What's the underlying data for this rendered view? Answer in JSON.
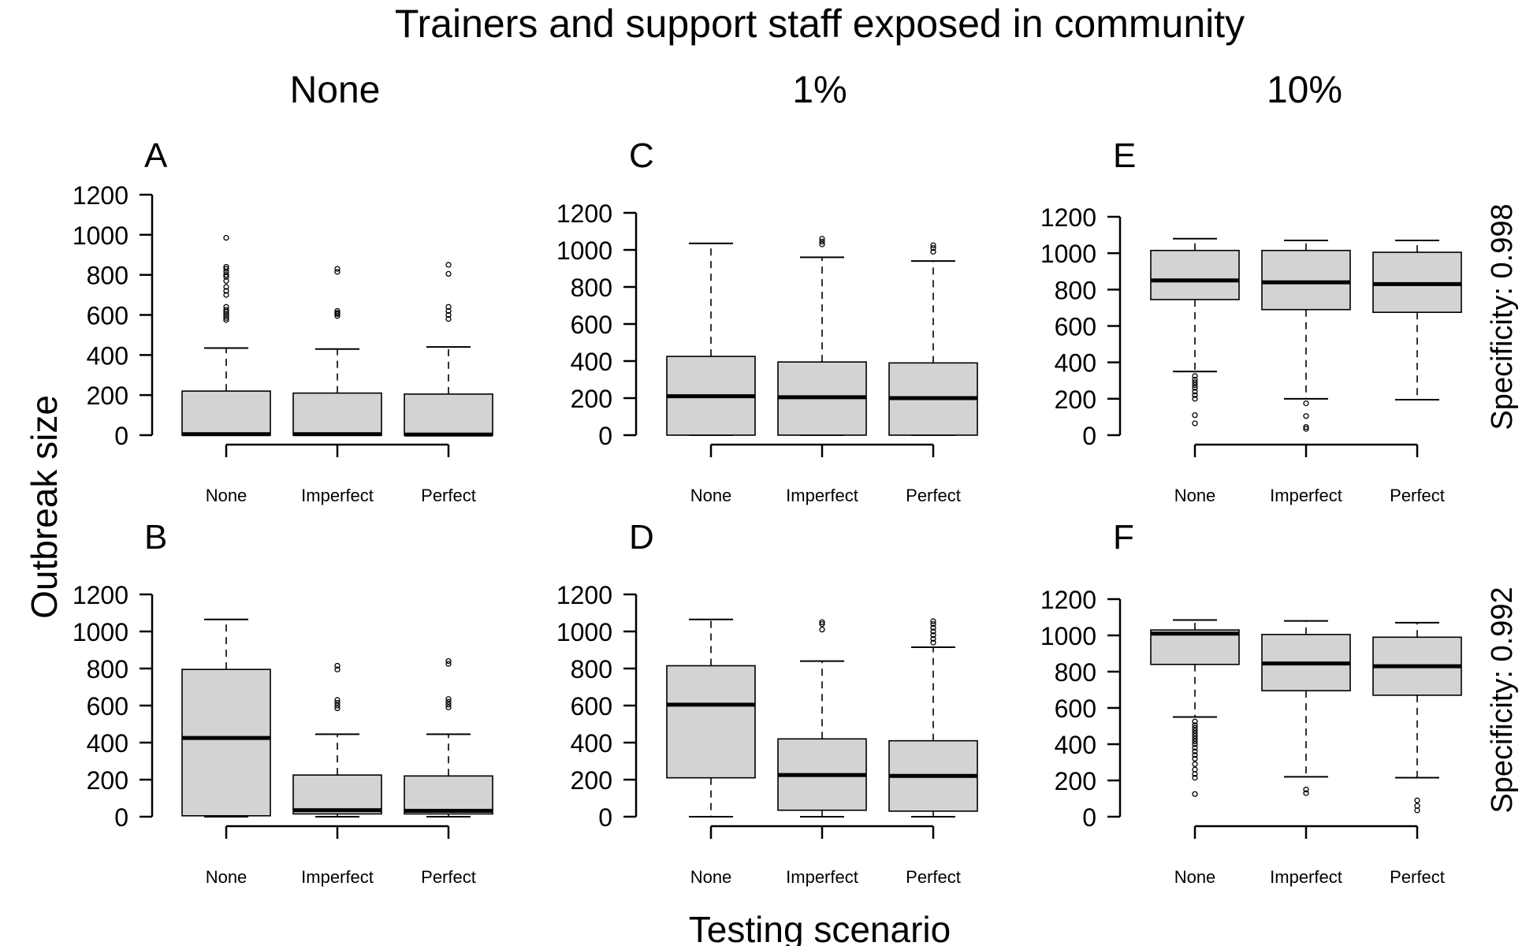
{
  "figure": {
    "title": "Trainers and support staff exposed in community",
    "xlabel": "Testing scenario",
    "ylabel": "Outbreak size",
    "column_headers": [
      "None",
      "1%",
      "10%"
    ],
    "row_labels": [
      "Specificity: 0.998",
      "Specificity: 0.992"
    ]
  },
  "chart_data": [
    {
      "type": "boxplot",
      "panel": "A",
      "column": "None",
      "row": "Specificity: 0.998",
      "categories": [
        "None",
        "Imperfect",
        "Perfect"
      ],
      "ylim": [
        0,
        1200
      ],
      "yticks": [
        0,
        200,
        400,
        600,
        800,
        1000,
        1200
      ],
      "boxes": [
        {
          "category": "None",
          "min": 0,
          "q1": 0,
          "median": 5,
          "q3": 220,
          "max": 435,
          "outliers": [
            575,
            585,
            595,
            605,
            615,
            625,
            640,
            700,
            720,
            740,
            770,
            790,
            800,
            815,
            830,
            840,
            985
          ]
        },
        {
          "category": "Imperfect",
          "min": 0,
          "q1": 0,
          "median": 5,
          "q3": 210,
          "max": 430,
          "outliers": [
            595,
            605,
            610,
            620,
            815,
            830
          ]
        },
        {
          "category": "Perfect",
          "min": 0,
          "q1": 0,
          "median": 3,
          "q3": 205,
          "max": 440,
          "outliers": [
            580,
            600,
            620,
            640,
            805,
            850
          ]
        }
      ]
    },
    {
      "type": "boxplot",
      "panel": "B",
      "column": "None",
      "row": "Specificity: 0.992",
      "categories": [
        "None",
        "Imperfect",
        "Perfect"
      ],
      "ylim": [
        0,
        1200
      ],
      "yticks": [
        0,
        200,
        400,
        600,
        800,
        1000,
        1200
      ],
      "boxes": [
        {
          "category": "None",
          "min": 0,
          "q1": 5,
          "median": 425,
          "q3": 795,
          "max": 1065,
          "outliers": []
        },
        {
          "category": "Imperfect",
          "min": 0,
          "q1": 15,
          "median": 35,
          "q3": 225,
          "max": 445,
          "outliers": [
            585,
            600,
            615,
            630,
            795,
            815
          ]
        },
        {
          "category": "Perfect",
          "min": 0,
          "q1": 15,
          "median": 32,
          "q3": 220,
          "max": 445,
          "outliers": [
            590,
            605,
            620,
            635,
            825,
            840
          ]
        }
      ]
    },
    {
      "type": "boxplot",
      "panel": "C",
      "column": "1%",
      "row": "Specificity: 0.998",
      "categories": [
        "None",
        "Imperfect",
        "Perfect"
      ],
      "ylim": [
        0,
        1200
      ],
      "yticks": [
        0,
        200,
        400,
        600,
        800,
        1000,
        1200
      ],
      "boxes": [
        {
          "category": "None",
          "min": 0,
          "q1": 0,
          "median": 210,
          "q3": 425,
          "max": 1035,
          "outliers": []
        },
        {
          "category": "Imperfect",
          "min": 0,
          "q1": 0,
          "median": 205,
          "q3": 395,
          "max": 960,
          "outliers": [
            1030,
            1045,
            1060
          ]
        },
        {
          "category": "Perfect",
          "min": 0,
          "q1": 0,
          "median": 200,
          "q3": 390,
          "max": 940,
          "outliers": [
            990,
            1010,
            1025
          ]
        }
      ]
    },
    {
      "type": "boxplot",
      "panel": "D",
      "column": "1%",
      "row": "Specificity: 0.992",
      "categories": [
        "None",
        "Imperfect",
        "Perfect"
      ],
      "ylim": [
        0,
        1200
      ],
      "yticks": [
        0,
        200,
        400,
        600,
        800,
        1000,
        1200
      ],
      "boxes": [
        {
          "category": "None",
          "min": 0,
          "q1": 210,
          "median": 605,
          "q3": 815,
          "max": 1065,
          "outliers": []
        },
        {
          "category": "Imperfect",
          "min": 0,
          "q1": 35,
          "median": 225,
          "q3": 420,
          "max": 840,
          "outliers": [
            1010,
            1040,
            1050
          ]
        },
        {
          "category": "Perfect",
          "min": 0,
          "q1": 30,
          "median": 220,
          "q3": 410,
          "max": 915,
          "outliers": [
            940,
            960,
            980,
            1000,
            1020,
            1040,
            1055
          ]
        }
      ]
    },
    {
      "type": "boxplot",
      "panel": "E",
      "column": "10%",
      "row": "Specificity: 0.998",
      "categories": [
        "None",
        "Imperfect",
        "Perfect"
      ],
      "ylim": [
        0,
        1200
      ],
      "yticks": [
        0,
        200,
        400,
        600,
        800,
        1000,
        1200
      ],
      "boxes": [
        {
          "category": "None",
          "min": 350,
          "q1": 745,
          "median": 850,
          "q3": 1015,
          "max": 1080,
          "outliers": [
            65,
            110,
            200,
            220,
            240,
            260,
            275,
            290,
            305,
            325
          ]
        },
        {
          "category": "Imperfect",
          "min": 200,
          "q1": 690,
          "median": 840,
          "q3": 1015,
          "max": 1070,
          "outliers": [
            35,
            45,
            105,
            175
          ]
        },
        {
          "category": "Perfect",
          "min": 195,
          "q1": 675,
          "median": 830,
          "q3": 1005,
          "max": 1070,
          "outliers": []
        }
      ]
    },
    {
      "type": "boxplot",
      "panel": "F",
      "column": "10%",
      "row": "Specificity: 0.992",
      "categories": [
        "None",
        "Imperfect",
        "Perfect"
      ],
      "ylim": [
        0,
        1200
      ],
      "yticks": [
        0,
        200,
        400,
        600,
        800,
        1000,
        1200
      ],
      "boxes": [
        {
          "category": "None",
          "min": 550,
          "q1": 840,
          "median": 1010,
          "q3": 1030,
          "max": 1085,
          "outliers": [
            125,
            215,
            235,
            260,
            290,
            320,
            340,
            360,
            380,
            400,
            415,
            430,
            445,
            460,
            475,
            490,
            505,
            525
          ]
        },
        {
          "category": "Imperfect",
          "min": 220,
          "q1": 695,
          "median": 845,
          "q3": 1005,
          "max": 1080,
          "outliers": [
            130,
            150
          ]
        },
        {
          "category": "Perfect",
          "min": 215,
          "q1": 670,
          "median": 830,
          "q3": 990,
          "max": 1070,
          "outliers": [
            35,
            60,
            90
          ]
        }
      ]
    }
  ]
}
